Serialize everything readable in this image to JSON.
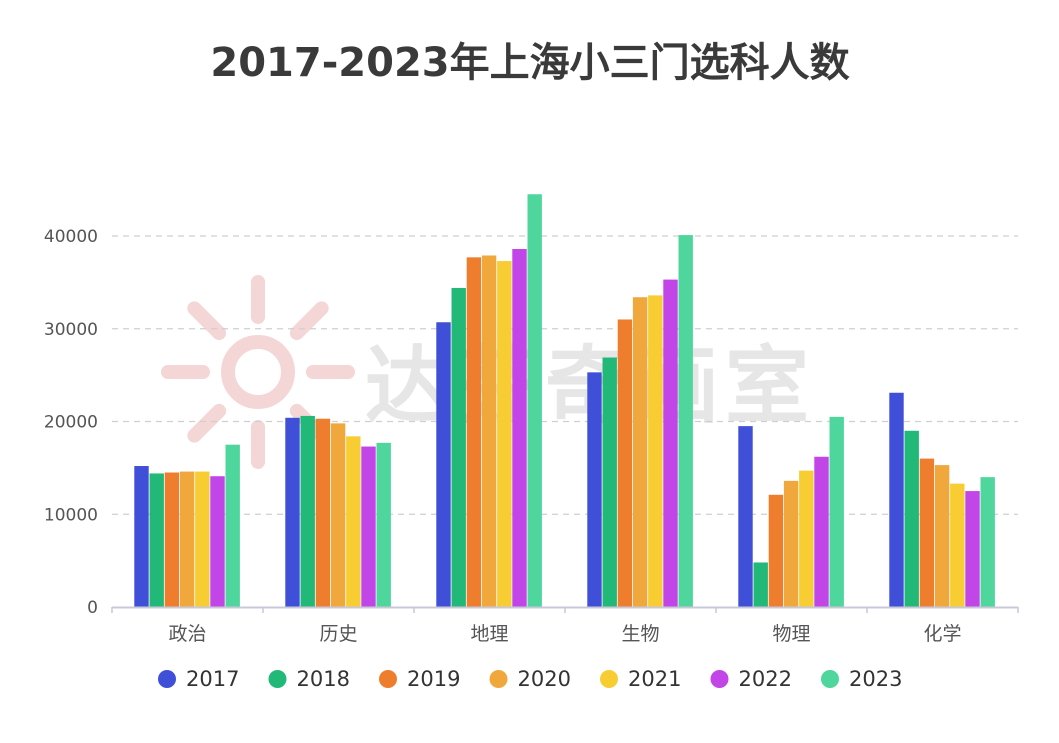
{
  "chart_data": {
    "type": "bar",
    "title": "2017-2023年上海小三门选科人数",
    "categories": [
      "政治",
      "历史",
      "地理",
      "生物",
      "物理",
      "化学"
    ],
    "series": [
      {
        "name": "2017",
        "color": "#3f4fd8",
        "values": [
          15200,
          20400,
          30700,
          25300,
          19500,
          23100
        ]
      },
      {
        "name": "2018",
        "color": "#21b878",
        "values": [
          14400,
          20600,
          34400,
          26900,
          4800,
          19000
        ]
      },
      {
        "name": "2019",
        "color": "#ef7d2e",
        "values": [
          14500,
          20300,
          37700,
          31000,
          12100,
          16000
        ]
      },
      {
        "name": "2020",
        "color": "#f0a83c",
        "values": [
          14600,
          19800,
          37900,
          33400,
          13600,
          15300
        ]
      },
      {
        "name": "2021",
        "color": "#f8cd33",
        "values": [
          14600,
          18400,
          37300,
          33600,
          14700,
          13300
        ]
      },
      {
        "name": "2022",
        "color": "#c245e8",
        "values": [
          14100,
          17300,
          38600,
          35300,
          16200,
          12500
        ]
      },
      {
        "name": "2023",
        "color": "#4fd69c",
        "values": [
          17500,
          17700,
          44500,
          40100,
          20500,
          14000
        ]
      }
    ],
    "y_ticks": [
      0,
      10000,
      20000,
      30000,
      40000
    ],
    "ylim": [
      0,
      45000
    ],
    "grid": true,
    "legend_position": "bottom",
    "xlabel": "",
    "ylabel": ""
  },
  "watermark": {
    "text": "达芬奇画室",
    "icon": "sun-logo-icon",
    "color": "#f4d6d6"
  }
}
